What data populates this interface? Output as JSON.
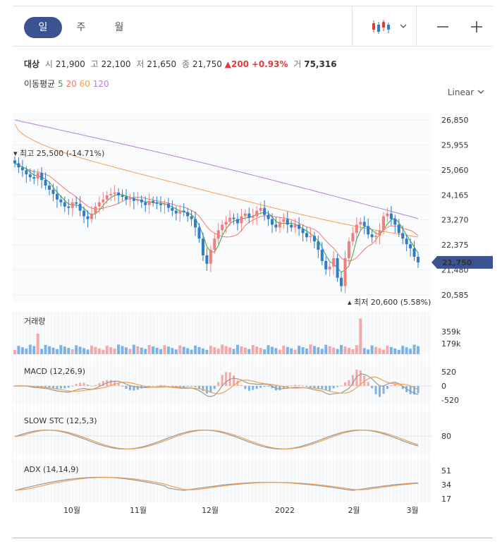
{
  "toolbar": {
    "tabs": [
      {
        "label": "일",
        "active": true
      },
      {
        "label": "주",
        "active": false
      },
      {
        "label": "월",
        "active": false
      }
    ],
    "chart_type_icon": "candlestick-icon",
    "dropdown_icon": "chevron-down-icon",
    "zoom_out_icon": "minus-icon",
    "zoom_in_icon": "plus-icon"
  },
  "quote": {
    "name": "대상",
    "open_label": "시",
    "open": "21,900",
    "high_label": "고",
    "high": "22,100",
    "low_label": "저",
    "low": "21,650",
    "close_label": "종",
    "close": "21,750",
    "change": "▲200",
    "change_pct": "+0.93%",
    "volume_label": "거",
    "volume": "75,316"
  },
  "moving_average": {
    "label": "이동평균",
    "periods": [
      {
        "value": "5",
        "color": "#3aa14a"
      },
      {
        "value": "20",
        "color": "#f07a6a"
      },
      {
        "value": "60",
        "color": "#f0a050"
      },
      {
        "value": "120",
        "color": "#b57ee0"
      }
    ]
  },
  "scale": {
    "label": "Linear",
    "icon": "chevron-down-icon"
  },
  "colors": {
    "up": "#f08080",
    "down": "#2f7cc8",
    "accent": "#3b5391",
    "macd_line": "#999999",
    "signal_line": "#f0a050"
  },
  "chart_data": {
    "type": "candlestick",
    "price_axis": {
      "ticks": [
        "26,850",
        "25,955",
        "25,060",
        "24,165",
        "23,270",
        "22,375",
        "21,480",
        "20,585"
      ],
      "min": 20585,
      "max": 26850
    },
    "x_axis": {
      "ticks": [
        "10월",
        "11월",
        "12월",
        "2022",
        "2월",
        "3월"
      ]
    },
    "current_price_label": "21,750",
    "high_annotation": "최고 25,500 (-14.71%)",
    "low_annotation": "최저 20,600 (5.58%)",
    "price": [
      25300,
      25150,
      25050,
      24900,
      24800,
      24750,
      24950,
      24700,
      24500,
      24350,
      24200,
      24000,
      23900,
      23750,
      23700,
      23900,
      23850,
      23600,
      23400,
      23300,
      23500,
      23750,
      23900,
      24000,
      24150,
      24200,
      24250,
      24150,
      24100,
      24000,
      24050,
      23950,
      24000,
      23900,
      23800,
      23950,
      23900,
      23850,
      23800,
      23850,
      23700,
      23600,
      23500,
      23600,
      23550,
      23400,
      23300,
      23000,
      22600,
      22000,
      21700,
      22200,
      22600,
      22900,
      23100,
      23200,
      23350,
      23300,
      23150,
      23400,
      23500,
      23350,
      23400,
      23600,
      23700,
      23450,
      23300,
      23100,
      23000,
      23200,
      23300,
      23100,
      23000,
      23100,
      22950,
      22800,
      22650,
      22700,
      22500,
      22200,
      21800,
      21500,
      21600,
      21900,
      21200,
      20900,
      21900,
      22500,
      22800,
      23100,
      23200,
      23050,
      22750,
      22650,
      22700,
      22900,
      23400,
      23500,
      23300,
      23100,
      22800,
      22600,
      22400,
      22250,
      21950,
      21750
    ],
    "volume": {
      "ticks": [
        "359k",
        "179k"
      ],
      "max_k": 359
    },
    "indicators": [
      {
        "name": "MACD (12,26,9)",
        "ticks": [
          "520",
          "0",
          "-520"
        ]
      },
      {
        "name": "SLOW STC (12,5,3)",
        "ticks": [
          "80"
        ]
      },
      {
        "name": "ADX (14,14,9)",
        "ticks": [
          "51",
          "34",
          "17"
        ]
      }
    ],
    "volume_pane_title": "거래량"
  }
}
